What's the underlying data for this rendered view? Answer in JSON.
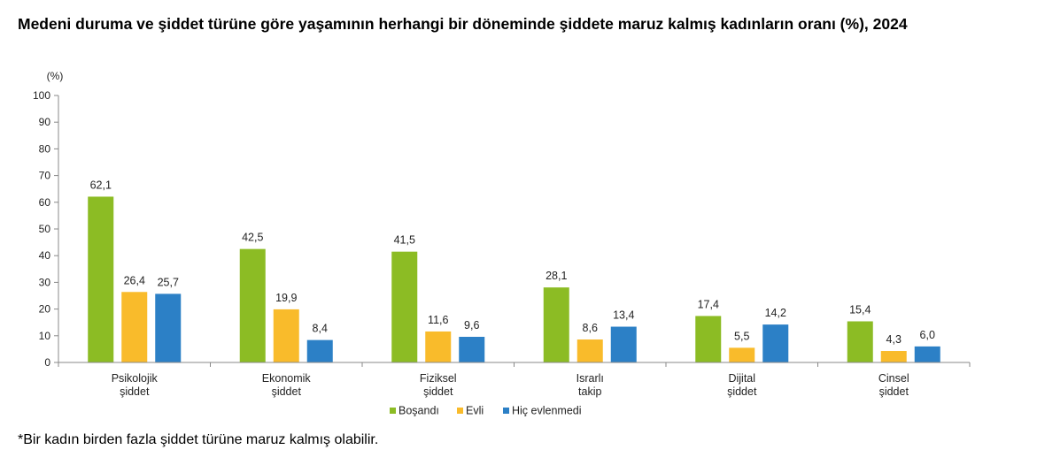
{
  "chart_data": {
    "type": "bar",
    "title": "Medeni duruma ve şiddet türüne göre yaşamının herhangi bir döneminde şiddete maruz kalmış kadınların oranı (%), 2024",
    "ylabel": "(%)",
    "ylim": [
      0,
      100
    ],
    "yticks": [
      0,
      10,
      20,
      30,
      40,
      50,
      60,
      70,
      80,
      90,
      100
    ],
    "categories": [
      [
        "Psikolojik",
        "şiddet"
      ],
      [
        "Ekonomik",
        "şiddet"
      ],
      [
        "Fiziksel",
        "şiddet"
      ],
      [
        "Israrlı",
        "takip"
      ],
      [
        "Dijital",
        "şiddet"
      ],
      [
        "Cinsel",
        "şiddet"
      ]
    ],
    "series": [
      {
        "name": "Boşandı",
        "color": "#8cbc24",
        "values": [
          62.1,
          42.5,
          41.5,
          28.1,
          17.4,
          15.4
        ],
        "labels": [
          "62,1",
          "42,5",
          "41,5",
          "28,1",
          "17,4",
          "15,4"
        ]
      },
      {
        "name": "Evli",
        "color": "#f9bb2b",
        "values": [
          26.4,
          19.9,
          11.6,
          8.6,
          5.5,
          4.3
        ],
        "labels": [
          "26,4",
          "19,9",
          "11,6",
          "8,6",
          "5,5",
          "4,3"
        ]
      },
      {
        "name": "Hiç evlenmedi",
        "color": "#2c80c6",
        "values": [
          25.7,
          8.4,
          9.6,
          13.4,
          14.2,
          6.0
        ],
        "labels": [
          "25,7",
          "8,4",
          "9,6",
          "13,4",
          "14,2",
          "6,0"
        ]
      }
    ],
    "grid": false,
    "legend_position": "bottom-center"
  },
  "footnote": "*Bir kadın birden fazla şiddet türüne maruz kalmış olabilir."
}
